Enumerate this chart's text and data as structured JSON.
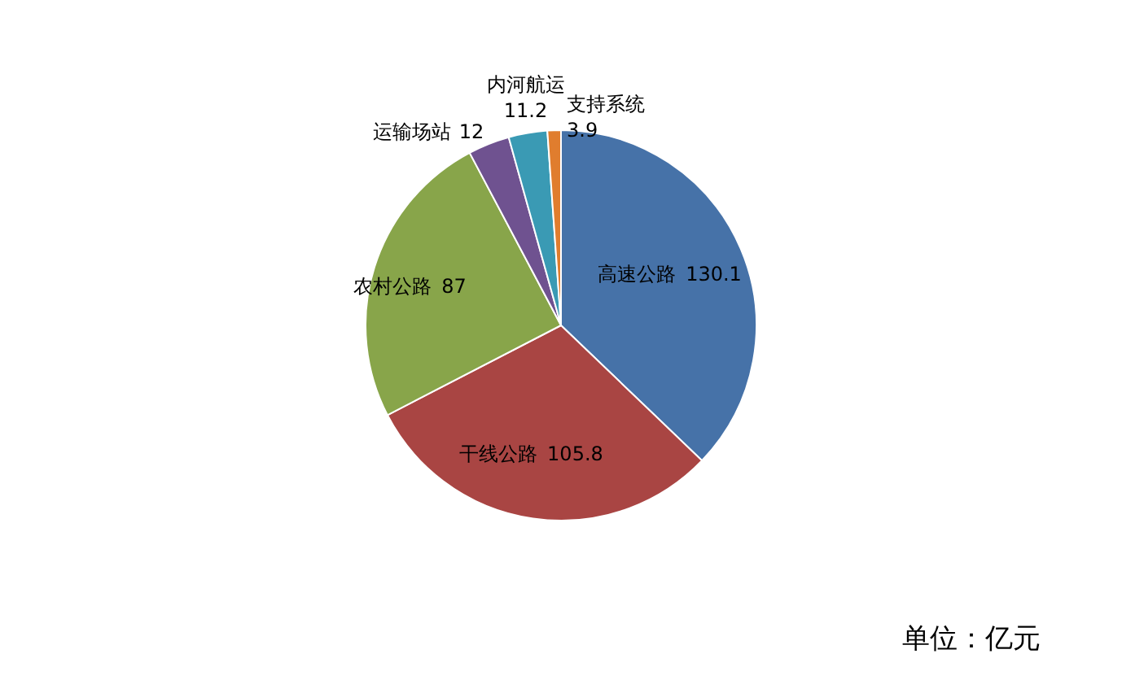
{
  "chart_data": {
    "type": "pie",
    "categories": [
      "高速公路",
      "干线公路",
      "农村公路",
      "运输场站",
      "内河航运",
      "支持系统"
    ],
    "values": [
      130.1,
      105.8,
      87,
      12,
      11.2,
      3.9
    ],
    "colors": [
      "#4672a8",
      "#a94543",
      "#88a54a",
      "#6f5290",
      "#3a9ab4",
      "#e07d2e"
    ],
    "data_labels": true,
    "annotations": [
      "单位：亿元"
    ]
  }
}
